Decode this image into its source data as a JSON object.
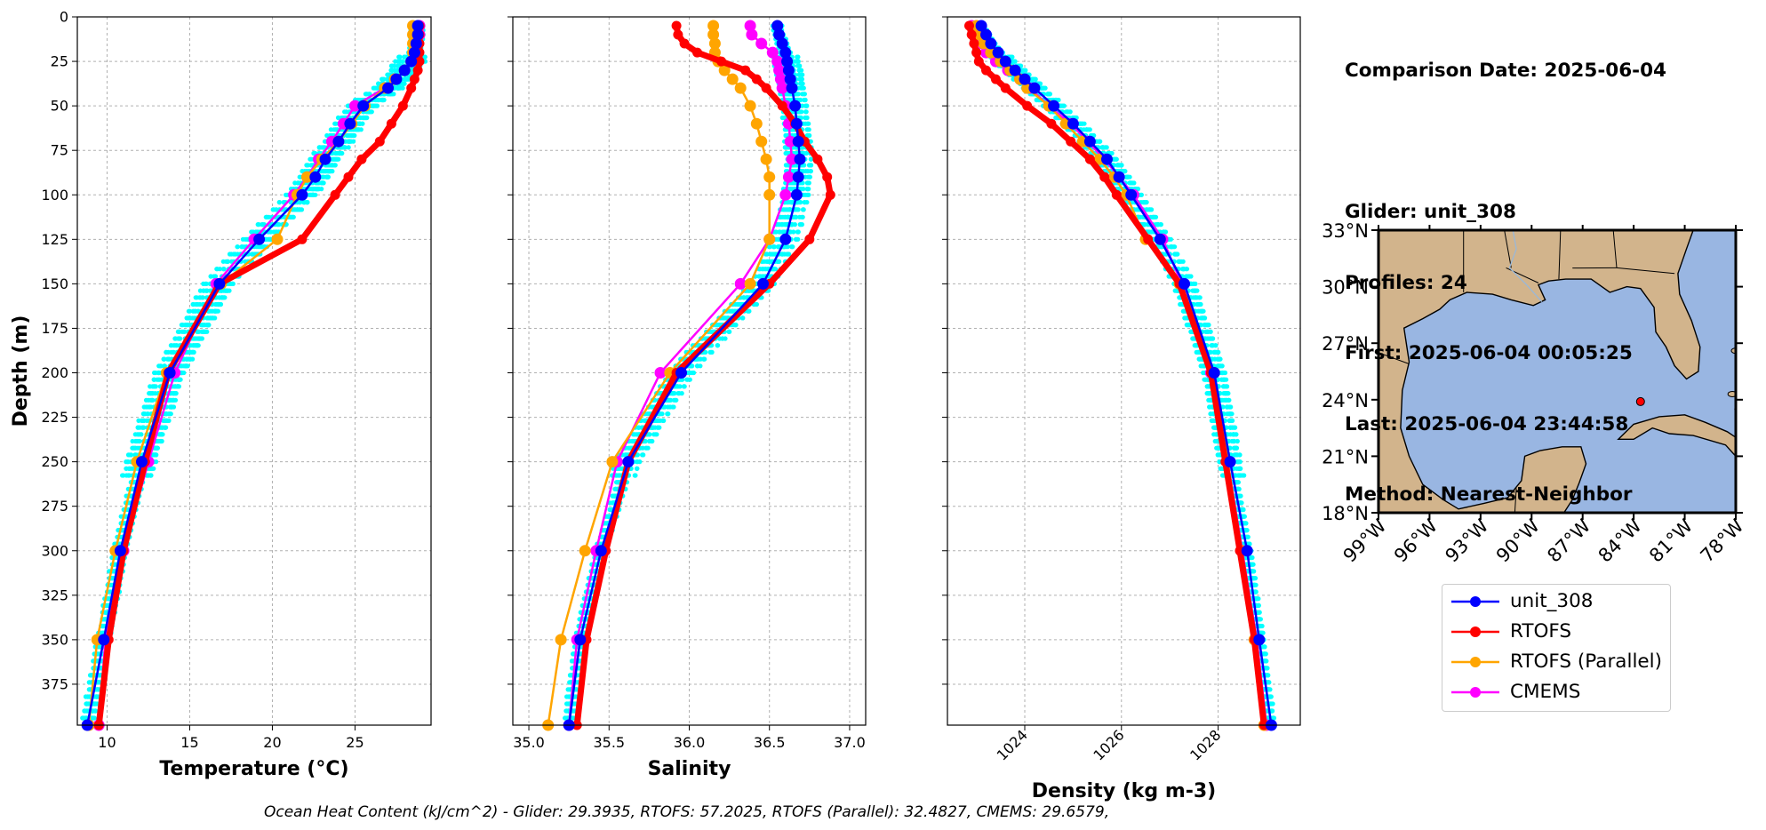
{
  "info": {
    "comparison_date": "Comparison Date: 2025-06-04",
    "glider": "Glider: unit_308",
    "profiles": "Profiles: 24",
    "first": "First: 2025-06-04 00:05:25",
    "last": "Last: 2025-06-04 23:44:58",
    "method": "Method: Nearest-Neighbor"
  },
  "footer": "Ocean Heat Content (kJ/cm^2) - Glider: 29.3935,  RTOFS: 57.2025,  RTOFS (Parallel): 32.4827,  CMEMS: 29.6579,",
  "legend": [
    {
      "name": "unit_308",
      "color": "#0000ff"
    },
    {
      "name": "RTOFS",
      "color": "#ff0000"
    },
    {
      "name": "RTOFS (Parallel)",
      "color": "#ffa500"
    },
    {
      "name": "CMEMS",
      "color": "#ff00ff"
    }
  ],
  "colors": {
    "glider_profiles": "#00ffff",
    "land": "#d2b48c",
    "ocean": "#99b6e2",
    "grid": "#b0b0b0"
  },
  "chart_data": [
    {
      "type": "line",
      "title": "",
      "xlabel": "Temperature (°C)",
      "ylabel": "Depth (m)",
      "xlim": [
        8.2,
        29.6
      ],
      "ylim": [
        398,
        0
      ],
      "xticks": [
        10,
        15,
        20,
        25
      ],
      "yticks": [
        0,
        25,
        50,
        75,
        100,
        125,
        150,
        175,
        200,
        225,
        250,
        275,
        300,
        325,
        350,
        375
      ],
      "grid": true,
      "depth": [
        5,
        10,
        15,
        20,
        25,
        30,
        35,
        40,
        50,
        60,
        70,
        80,
        90,
        100,
        125,
        150,
        200,
        250,
        300,
        350,
        398
      ],
      "series": [
        {
          "name": "unit_308",
          "values": [
            28.8,
            28.8,
            28.7,
            28.6,
            28.4,
            28.0,
            27.5,
            27.0,
            25.5,
            24.7,
            24.0,
            23.2,
            22.6,
            21.8,
            19.2,
            16.8,
            13.8,
            12.1,
            10.8,
            9.8,
            8.8
          ]
        },
        {
          "name": "RTOFS",
          "values": [
            28.9,
            28.9,
            28.9,
            28.9,
            28.9,
            28.8,
            28.6,
            28.4,
            27.9,
            27.2,
            26.5,
            25.4,
            24.6,
            23.8,
            21.8,
            16.8,
            13.7,
            12.3,
            11.0,
            10.1,
            9.5
          ]
        },
        {
          "name": "RTOFS (Parallel)",
          "values": [
            28.5,
            28.5,
            28.5,
            28.5,
            28.4,
            28.0,
            27.4,
            26.8,
            25.6,
            24.8,
            24.0,
            23.0,
            22.1,
            21.5,
            20.3,
            16.9,
            13.6,
            11.8,
            10.5,
            9.4,
            8.9
          ]
        },
        {
          "name": "CMEMS",
          "values": [
            28.9,
            28.9,
            28.8,
            28.6,
            28.4,
            28.0,
            27.4,
            26.8,
            25.0,
            24.3,
            23.6,
            22.8,
            22.1,
            21.3,
            18.9,
            16.6,
            14.1,
            12.5,
            11.0,
            9.9,
            9.5
          ]
        }
      ]
    },
    {
      "type": "line",
      "title": "",
      "xlabel": "Salinity",
      "ylabel": "",
      "xlim": [
        34.9,
        37.1
      ],
      "ylim": [
        398,
        0
      ],
      "xticks": [
        35.0,
        35.5,
        36.0,
        36.5,
        37.0
      ],
      "grid": true,
      "depth": [
        5,
        10,
        15,
        20,
        25,
        30,
        35,
        40,
        50,
        60,
        70,
        80,
        90,
        100,
        125,
        150,
        200,
        250,
        300,
        350,
        398
      ],
      "series": [
        {
          "name": "unit_308",
          "values": [
            36.55,
            36.56,
            36.58,
            36.6,
            36.61,
            36.62,
            36.63,
            36.64,
            36.66,
            36.67,
            36.68,
            36.69,
            36.68,
            36.67,
            36.6,
            36.46,
            35.95,
            35.62,
            35.45,
            35.32,
            35.25
          ]
        },
        {
          "name": "RTOFS",
          "values": [
            35.92,
            35.93,
            35.97,
            36.05,
            36.2,
            36.35,
            36.42,
            36.48,
            36.58,
            36.66,
            36.72,
            36.8,
            36.86,
            36.88,
            36.75,
            36.5,
            35.92,
            35.62,
            35.48,
            35.36,
            35.3
          ]
        },
        {
          "name": "RTOFS (Parallel)",
          "values": [
            36.15,
            36.15,
            36.16,
            36.16,
            36.18,
            36.22,
            36.27,
            36.32,
            36.38,
            36.42,
            36.45,
            36.48,
            36.5,
            36.5,
            36.5,
            36.38,
            35.88,
            35.52,
            35.35,
            35.2,
            35.12
          ]
        },
        {
          "name": "CMEMS",
          "values": [
            36.38,
            36.39,
            36.45,
            36.52,
            36.55,
            36.56,
            36.57,
            36.58,
            36.6,
            36.62,
            36.63,
            36.64,
            36.62,
            36.6,
            36.5,
            36.32,
            35.82,
            35.55,
            35.42,
            35.3,
            35.25
          ]
        }
      ]
    },
    {
      "type": "line",
      "title": "",
      "xlabel": "Density (kg m-3)",
      "ylabel": "",
      "xlim": [
        1022.4,
        1029.7
      ],
      "ylim": [
        398,
        0
      ],
      "xticks": [
        1024,
        1026,
        1028
      ],
      "grid": true,
      "depth": [
        5,
        10,
        15,
        20,
        25,
        30,
        35,
        40,
        50,
        60,
        70,
        80,
        90,
        100,
        125,
        150,
        200,
        250,
        300,
        350,
        398
      ],
      "series": [
        {
          "name": "unit_308",
          "values": [
            1023.1,
            1023.2,
            1023.3,
            1023.45,
            1023.6,
            1023.8,
            1024.0,
            1024.2,
            1024.6,
            1025.0,
            1025.35,
            1025.7,
            1025.95,
            1026.2,
            1026.8,
            1027.3,
            1027.92,
            1028.25,
            1028.6,
            1028.85,
            1029.1
          ]
        },
        {
          "name": "RTOFS",
          "values": [
            1022.85,
            1022.9,
            1022.95,
            1023.0,
            1023.05,
            1023.2,
            1023.4,
            1023.6,
            1024.05,
            1024.55,
            1024.95,
            1025.35,
            1025.65,
            1025.9,
            1026.55,
            1027.2,
            1027.85,
            1028.15,
            1028.45,
            1028.75,
            1028.95
          ]
        },
        {
          "name": "RTOFS (Parallel)",
          "values": [
            1023.0,
            1023.05,
            1023.15,
            1023.3,
            1023.5,
            1023.7,
            1023.9,
            1024.05,
            1024.5,
            1024.85,
            1025.2,
            1025.55,
            1025.85,
            1026.1,
            1026.5,
            1027.2,
            1027.92,
            1028.2,
            1028.48,
            1028.75,
            1028.95
          ]
        },
        {
          "name": "CMEMS",
          "values": [
            1022.9,
            1022.95,
            1023.05,
            1023.2,
            1023.4,
            1023.65,
            1023.9,
            1024.1,
            1024.5,
            1024.95,
            1025.3,
            1025.65,
            1025.95,
            1026.25,
            1026.85,
            1027.25,
            1027.85,
            1028.2,
            1028.5,
            1028.8,
            1029.0
          ]
        }
      ]
    },
    {
      "type": "map",
      "title": "",
      "lon_range": [
        -99,
        -78
      ],
      "lat_range": [
        18,
        33
      ],
      "lon_ticks": [
        "99°W",
        "96°W",
        "93°W",
        "90°W",
        "87°W",
        "84°W",
        "81°W",
        "78°W"
      ],
      "lat_ticks": [
        "33°N",
        "30°N",
        "27°N",
        "24°N",
        "21°N",
        "18°N"
      ],
      "marker": {
        "lon": -83.6,
        "lat": 23.9
      }
    }
  ]
}
